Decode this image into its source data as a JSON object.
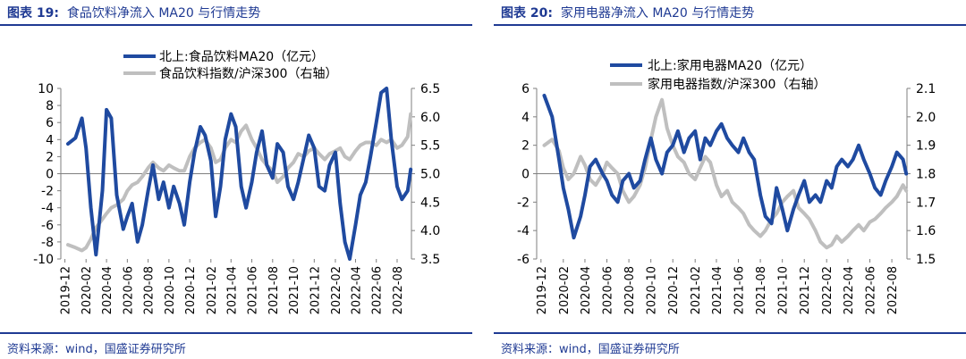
{
  "charts": [
    {
      "title_label": "图表 19:",
      "title_text": "食品饮料净流入 MA20 与行情走势",
      "source": "资料来源：wind，国盛证券研究所"
    },
    {
      "title_label": "图表 20:",
      "title_text": "家用电器净流入 MA20 与行情走势",
      "source": "资料来源：wind，国盛证券研究所"
    }
  ],
  "chart_data": [
    {
      "type": "line",
      "colors": {
        "flow": "#1f4aa0",
        "index": "#bfbfbf"
      },
      "legend_position": "top-center",
      "y_left": {
        "lim": [
          -10,
          10
        ],
        "ticks": [
          10,
          8,
          6,
          4,
          2,
          0,
          -2,
          -4,
          -6,
          -8,
          -10
        ]
      },
      "y_right": {
        "lim": [
          3.5,
          6.5
        ],
        "ticks": [
          "6.5",
          "6.0",
          "5.5",
          "5.0",
          "4.5",
          "4.0",
          "3.5"
        ]
      },
      "x_ticks": [
        "2019-12",
        "2020-02",
        "2020-04",
        "2020-06",
        "2020-08",
        "2020-10",
        "2020-12",
        "2021-02",
        "2021-04",
        "2021-06",
        "2021-08",
        "2021-10",
        "2021-12",
        "2022-02",
        "2022-04",
        "2022-06",
        "2022-08"
      ],
      "series": [
        {
          "name": "北上:食品饮料MA20（亿元）",
          "axis": "left",
          "x": [
            "2019-12-10",
            "2020-01-01",
            "2020-01-20",
            "2020-02-01",
            "2020-02-15",
            "2020-03-01",
            "2020-03-20",
            "2020-04-01",
            "2020-04-15",
            "2020-05-01",
            "2020-05-20",
            "2020-06-01",
            "2020-06-15",
            "2020-07-01",
            "2020-07-15",
            "2020-08-01",
            "2020-08-15",
            "2020-09-01",
            "2020-09-15",
            "2020-10-01",
            "2020-10-15",
            "2020-11-01",
            "2020-11-15",
            "2020-12-01",
            "2020-12-15",
            "2021-01-01",
            "2021-01-15",
            "2021-02-01",
            "2021-02-15",
            "2021-03-01",
            "2021-03-15",
            "2021-04-01",
            "2021-04-15",
            "2021-05-01",
            "2021-05-15",
            "2021-06-01",
            "2021-06-15",
            "2021-07-01",
            "2021-07-15",
            "2021-08-01",
            "2021-08-15",
            "2021-09-01",
            "2021-09-15",
            "2021-10-01",
            "2021-10-15",
            "2021-11-01",
            "2021-11-15",
            "2021-12-01",
            "2021-12-15",
            "2022-01-01",
            "2022-01-15",
            "2022-02-01",
            "2022-02-15",
            "2022-03-01",
            "2022-03-15",
            "2022-04-01",
            "2022-04-15",
            "2022-05-01",
            "2022-05-15",
            "2022-06-01",
            "2022-06-15",
            "2022-07-01",
            "2022-07-15",
            "2022-08-01",
            "2022-08-15",
            "2022-09-01",
            "2022-09-10"
          ],
          "values": [
            3.5,
            4.2,
            6.5,
            3.0,
            -4.0,
            -9.5,
            -2.0,
            7.5,
            6.5,
            -2.5,
            -6.5,
            -5.0,
            -3.5,
            -8.0,
            -6.0,
            -2.0,
            1.0,
            -3.0,
            -1.0,
            -4.0,
            -1.5,
            -3.5,
            -6.0,
            -1.0,
            2.5,
            5.5,
            4.5,
            1.5,
            -5.0,
            -1.5,
            4.0,
            7.0,
            5.5,
            -1.5,
            -4.0,
            -1.0,
            2.5,
            5.0,
            1.0,
            -0.5,
            3.5,
            2.5,
            -1.5,
            -3.0,
            -1.0,
            2.0,
            4.5,
            3.0,
            -1.5,
            -2.0,
            1.0,
            2.5,
            -3.5,
            -8.0,
            -10.0,
            -6.0,
            -2.5,
            -1.0,
            2.0,
            6.0,
            9.5,
            10.0,
            4.0,
            -1.5,
            -3.0,
            -2.0,
            0.5
          ]
        },
        {
          "name": "食品饮料指数/沪深300（右轴）",
          "axis": "right",
          "x": [
            "2019-12-10",
            "2020-01-01",
            "2020-01-20",
            "2020-02-01",
            "2020-02-15",
            "2020-03-01",
            "2020-03-20",
            "2020-04-01",
            "2020-04-15",
            "2020-05-01",
            "2020-05-20",
            "2020-06-01",
            "2020-06-15",
            "2020-07-01",
            "2020-07-15",
            "2020-08-01",
            "2020-08-15",
            "2020-09-01",
            "2020-09-15",
            "2020-10-01",
            "2020-10-15",
            "2020-11-01",
            "2020-11-15",
            "2020-12-01",
            "2020-12-15",
            "2021-01-01",
            "2021-01-15",
            "2021-02-01",
            "2021-02-15",
            "2021-03-01",
            "2021-03-15",
            "2021-04-01",
            "2021-04-15",
            "2021-05-01",
            "2021-05-15",
            "2021-06-01",
            "2021-06-15",
            "2021-07-01",
            "2021-07-15",
            "2021-08-01",
            "2021-08-15",
            "2021-09-01",
            "2021-09-15",
            "2021-10-01",
            "2021-10-15",
            "2021-11-01",
            "2021-11-15",
            "2021-12-01",
            "2021-12-15",
            "2022-01-01",
            "2022-01-15",
            "2022-02-01",
            "2022-02-15",
            "2022-03-01",
            "2022-03-15",
            "2022-04-01",
            "2022-04-15",
            "2022-05-01",
            "2022-05-15",
            "2022-06-01",
            "2022-06-15",
            "2022-07-01",
            "2022-07-15",
            "2022-08-01",
            "2022-08-15",
            "2022-09-01",
            "2022-09-10"
          ],
          "values": [
            3.75,
            3.7,
            3.65,
            3.7,
            3.85,
            4.05,
            4.2,
            4.3,
            4.4,
            4.45,
            4.55,
            4.7,
            4.8,
            4.85,
            4.95,
            5.1,
            5.2,
            5.1,
            5.05,
            5.15,
            5.1,
            5.05,
            5.05,
            5.3,
            5.45,
            5.55,
            5.6,
            5.45,
            5.2,
            5.25,
            5.45,
            5.6,
            5.55,
            5.75,
            5.85,
            5.6,
            5.45,
            5.25,
            5.15,
            5.05,
            4.85,
            4.95,
            5.1,
            5.2,
            5.35,
            5.3,
            5.4,
            5.45,
            5.35,
            5.25,
            5.35,
            5.4,
            5.45,
            5.3,
            5.25,
            5.4,
            5.5,
            5.55,
            5.55,
            5.5,
            5.6,
            5.55,
            5.6,
            5.45,
            5.5,
            5.65,
            6.05
          ]
        }
      ]
    },
    {
      "type": "line",
      "colors": {
        "flow": "#1f4aa0",
        "index": "#bfbfbf"
      },
      "legend_position": "top-center",
      "y_left": {
        "lim": [
          -6,
          6
        ],
        "ticks": [
          6,
          4,
          2,
          0,
          -2,
          -4,
          -6
        ]
      },
      "y_right": {
        "lim": [
          1.5,
          2.1
        ],
        "ticks": [
          "2.1",
          "2.0",
          "1.9",
          "1.8",
          "1.7",
          "1.6",
          "1.5"
        ]
      },
      "x_ticks": [
        "2019-12",
        "2020-02",
        "2020-04",
        "2020-06",
        "2020-08",
        "2020-10",
        "2020-12",
        "2021-02",
        "2021-04",
        "2021-06",
        "2021-08",
        "2021-10",
        "2021-12",
        "2022-02",
        "2022-04",
        "2022-06",
        "2022-08"
      ],
      "series": [
        {
          "name": "北上:家用电器MA20（亿元）",
          "axis": "left",
          "x": [
            "2019-12-10",
            "2020-01-01",
            "2020-01-20",
            "2020-02-01",
            "2020-02-15",
            "2020-03-01",
            "2020-03-20",
            "2020-04-01",
            "2020-04-15",
            "2020-05-01",
            "2020-05-20",
            "2020-06-01",
            "2020-06-15",
            "2020-07-01",
            "2020-07-15",
            "2020-08-01",
            "2020-08-15",
            "2020-09-01",
            "2020-09-15",
            "2020-10-01",
            "2020-10-15",
            "2020-11-01",
            "2020-11-15",
            "2020-12-01",
            "2020-12-15",
            "2021-01-01",
            "2021-01-15",
            "2021-02-01",
            "2021-02-15",
            "2021-03-01",
            "2021-03-15",
            "2021-04-01",
            "2021-04-15",
            "2021-05-01",
            "2021-05-15",
            "2021-06-01",
            "2021-06-15",
            "2021-07-01",
            "2021-07-15",
            "2021-08-01",
            "2021-08-15",
            "2021-09-01",
            "2021-09-15",
            "2021-10-01",
            "2021-10-15",
            "2021-11-01",
            "2021-11-15",
            "2021-12-01",
            "2021-12-15",
            "2022-01-01",
            "2022-01-15",
            "2022-02-01",
            "2022-02-15",
            "2022-03-01",
            "2022-03-15",
            "2022-04-01",
            "2022-04-15",
            "2022-05-01",
            "2022-05-15",
            "2022-06-01",
            "2022-06-15",
            "2022-07-01",
            "2022-07-15",
            "2022-08-01",
            "2022-08-15",
            "2022-09-01",
            "2022-09-10"
          ],
          "values": [
            5.5,
            4.0,
            1.0,
            -1.0,
            -2.5,
            -4.5,
            -3.0,
            -1.5,
            0.5,
            1.0,
            0.0,
            -0.5,
            -1.5,
            -2.0,
            -0.5,
            0.0,
            -1.0,
            -0.5,
            1.0,
            2.5,
            1.0,
            0.0,
            1.5,
            2.0,
            3.0,
            1.5,
            2.5,
            3.0,
            1.0,
            2.5,
            2.0,
            3.0,
            3.5,
            2.5,
            2.0,
            1.5,
            2.5,
            1.5,
            1.0,
            -1.5,
            -3.0,
            -3.5,
            -1.0,
            -2.5,
            -4.0,
            -2.5,
            -1.5,
            -0.5,
            -2.0,
            -1.5,
            -2.0,
            -0.5,
            -1.0,
            0.5,
            1.0,
            0.5,
            1.0,
            2.0,
            1.0,
            0.0,
            -1.0,
            -1.5,
            -0.5,
            0.5,
            1.5,
            1.0,
            0.0
          ]
        },
        {
          "name": "家用电器指数/沪深300（右轴）",
          "axis": "right",
          "x": [
            "2019-12-10",
            "2020-01-01",
            "2020-01-20",
            "2020-02-01",
            "2020-02-15",
            "2020-03-01",
            "2020-03-20",
            "2020-04-01",
            "2020-04-15",
            "2020-05-01",
            "2020-05-20",
            "2020-06-01",
            "2020-06-15",
            "2020-07-01",
            "2020-07-15",
            "2020-08-01",
            "2020-08-15",
            "2020-09-01",
            "2020-09-15",
            "2020-10-01",
            "2020-10-15",
            "2020-11-01",
            "2020-11-15",
            "2020-12-01",
            "2020-12-15",
            "2021-01-01",
            "2021-01-15",
            "2021-02-01",
            "2021-02-15",
            "2021-03-01",
            "2021-03-15",
            "2021-04-01",
            "2021-04-15",
            "2021-05-01",
            "2021-05-15",
            "2021-06-01",
            "2021-06-15",
            "2021-07-01",
            "2021-07-15",
            "2021-08-01",
            "2021-08-15",
            "2021-09-01",
            "2021-09-15",
            "2021-10-01",
            "2021-10-15",
            "2021-11-01",
            "2021-11-15",
            "2021-12-01",
            "2021-12-15",
            "2022-01-01",
            "2022-01-15",
            "2022-02-01",
            "2022-02-15",
            "2022-03-01",
            "2022-03-15",
            "2022-04-01",
            "2022-04-15",
            "2022-05-01",
            "2022-05-15",
            "2022-06-01",
            "2022-06-15",
            "2022-07-01",
            "2022-07-15",
            "2022-08-01",
            "2022-08-15",
            "2022-09-01",
            "2022-09-10"
          ],
          "values": [
            1.9,
            1.92,
            1.88,
            1.82,
            1.78,
            1.8,
            1.86,
            1.83,
            1.78,
            1.76,
            1.8,
            1.84,
            1.82,
            1.8,
            1.74,
            1.7,
            1.72,
            1.76,
            1.82,
            1.92,
            2.0,
            2.06,
            1.96,
            1.9,
            1.86,
            1.84,
            1.8,
            1.78,
            1.82,
            1.86,
            1.84,
            1.76,
            1.72,
            1.74,
            1.7,
            1.68,
            1.66,
            1.62,
            1.6,
            1.58,
            1.6,
            1.64,
            1.66,
            1.7,
            1.72,
            1.74,
            1.68,
            1.66,
            1.64,
            1.6,
            1.56,
            1.54,
            1.55,
            1.58,
            1.56,
            1.58,
            1.6,
            1.62,
            1.6,
            1.63,
            1.64,
            1.66,
            1.68,
            1.7,
            1.72,
            1.76,
            1.74
          ]
        }
      ]
    }
  ]
}
